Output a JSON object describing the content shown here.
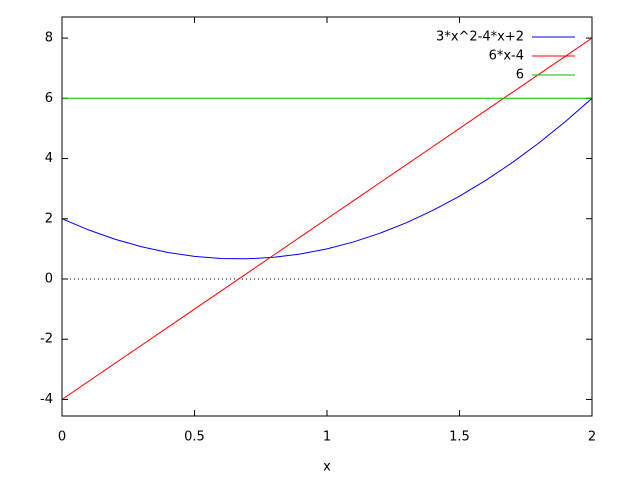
{
  "chart_data": {
    "type": "line",
    "xlabel": "x",
    "x": [
      0,
      0.1,
      0.2,
      0.3,
      0.4,
      0.5,
      0.6,
      0.7,
      0.8,
      0.9,
      1,
      1.1,
      1.2,
      1.3,
      1.4,
      1.5,
      1.6,
      1.7,
      1.8,
      1.9,
      2
    ],
    "series": [
      {
        "name": "3*x^2-4*x+2",
        "color": "#0000ff",
        "values": [
          2,
          1.63,
          1.32,
          1.07,
          0.88,
          0.75,
          0.68,
          0.67,
          0.72,
          0.83,
          1,
          1.23,
          1.52,
          1.87,
          2.28,
          2.75,
          3.28,
          3.87,
          4.52,
          5.23,
          6
        ]
      },
      {
        "name": "6*x-4",
        "color": "#ff0000",
        "values": [
          -4,
          -3.4,
          -2.8,
          -2.2,
          -1.6,
          -1,
          -0.4,
          0.2,
          0.8,
          1.4,
          2,
          2.6,
          3.2,
          3.8,
          4.4,
          5,
          5.6,
          6.2,
          6.8,
          7.4,
          8
        ]
      },
      {
        "name": "6",
        "color": "#00c000",
        "values": [
          6,
          6,
          6,
          6,
          6,
          6,
          6,
          6,
          6,
          6,
          6,
          6,
          6,
          6,
          6,
          6,
          6,
          6,
          6,
          6,
          6
        ]
      }
    ],
    "xlim": [
      0,
      2
    ],
    "xticks": [
      0,
      0.5,
      1,
      1.5,
      2
    ],
    "ylim": [
      -4.55,
      8.7
    ],
    "yticks": [
      -4,
      -2,
      0,
      2,
      4,
      6,
      8
    ],
    "zero_axis": true,
    "legend": "top-right"
  }
}
